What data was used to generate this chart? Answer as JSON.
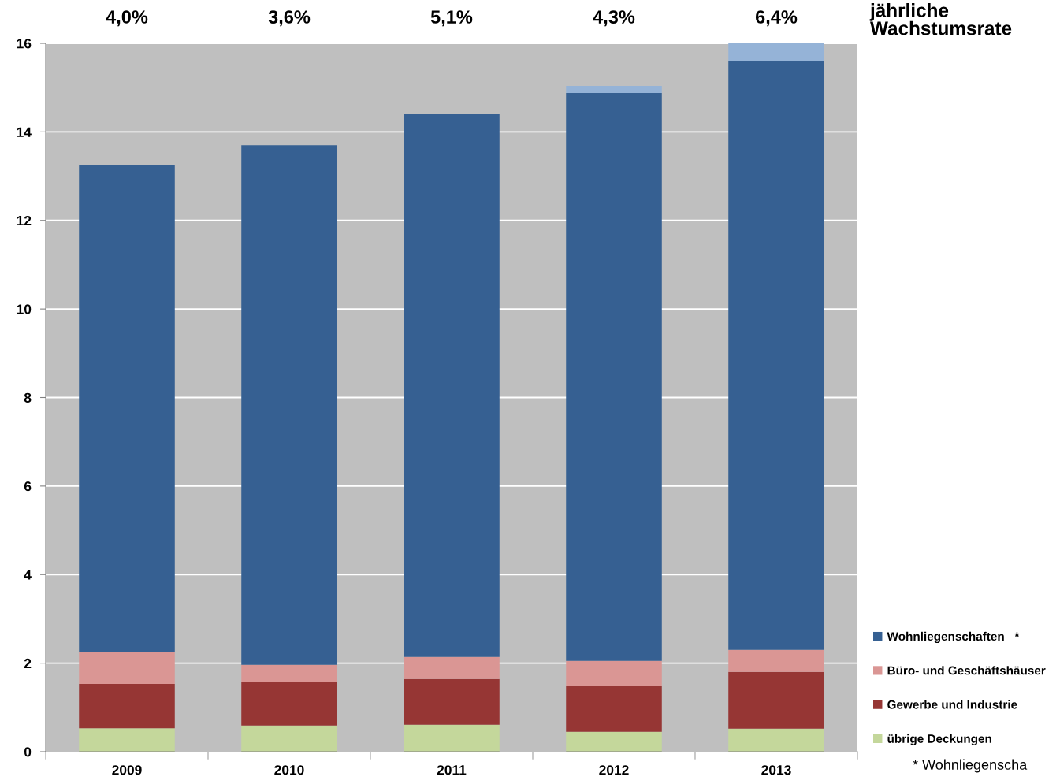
{
  "chart_data": {
    "type": "bar",
    "stacked": true,
    "categories": [
      "2009",
      "2010",
      "2011",
      "2012",
      "2013"
    ],
    "series": [
      {
        "name": "übrige Deckungen",
        "color": "#c4d79b",
        "values": [
          0.53,
          0.59,
          0.61,
          0.45,
          0.52
        ]
      },
      {
        "name": "Gewerbe und Industrie",
        "color": "#963634",
        "values": [
          1.0,
          0.99,
          1.03,
          1.04,
          1.28
        ]
      },
      {
        "name": "Büro- und Geschäftshäuser",
        "color": "#da9694",
        "values": [
          0.73,
          0.38,
          0.5,
          0.56,
          0.5
        ]
      },
      {
        "name": "Wohnliegenschaften   *",
        "color": "#366092",
        "values": [
          10.98,
          11.74,
          12.26,
          12.83,
          13.31
        ]
      },
      {
        "color": "#95b3d7",
        "values": [
          null,
          null,
          null,
          0.16,
          0.39
        ]
      }
    ],
    "ylim": [
      0,
      16
    ],
    "yticks": [
      0,
      2,
      4,
      6,
      8,
      10,
      12,
      14,
      16
    ],
    "grid": "y",
    "legend": "bottom right",
    "annotations": [
      "4,0%",
      "3,6%",
      "5,1%",
      "4,3%",
      "6,4%",
      "jährliche\nWachstumsrate",
      "* Wohnliegenscha"
    ]
  }
}
